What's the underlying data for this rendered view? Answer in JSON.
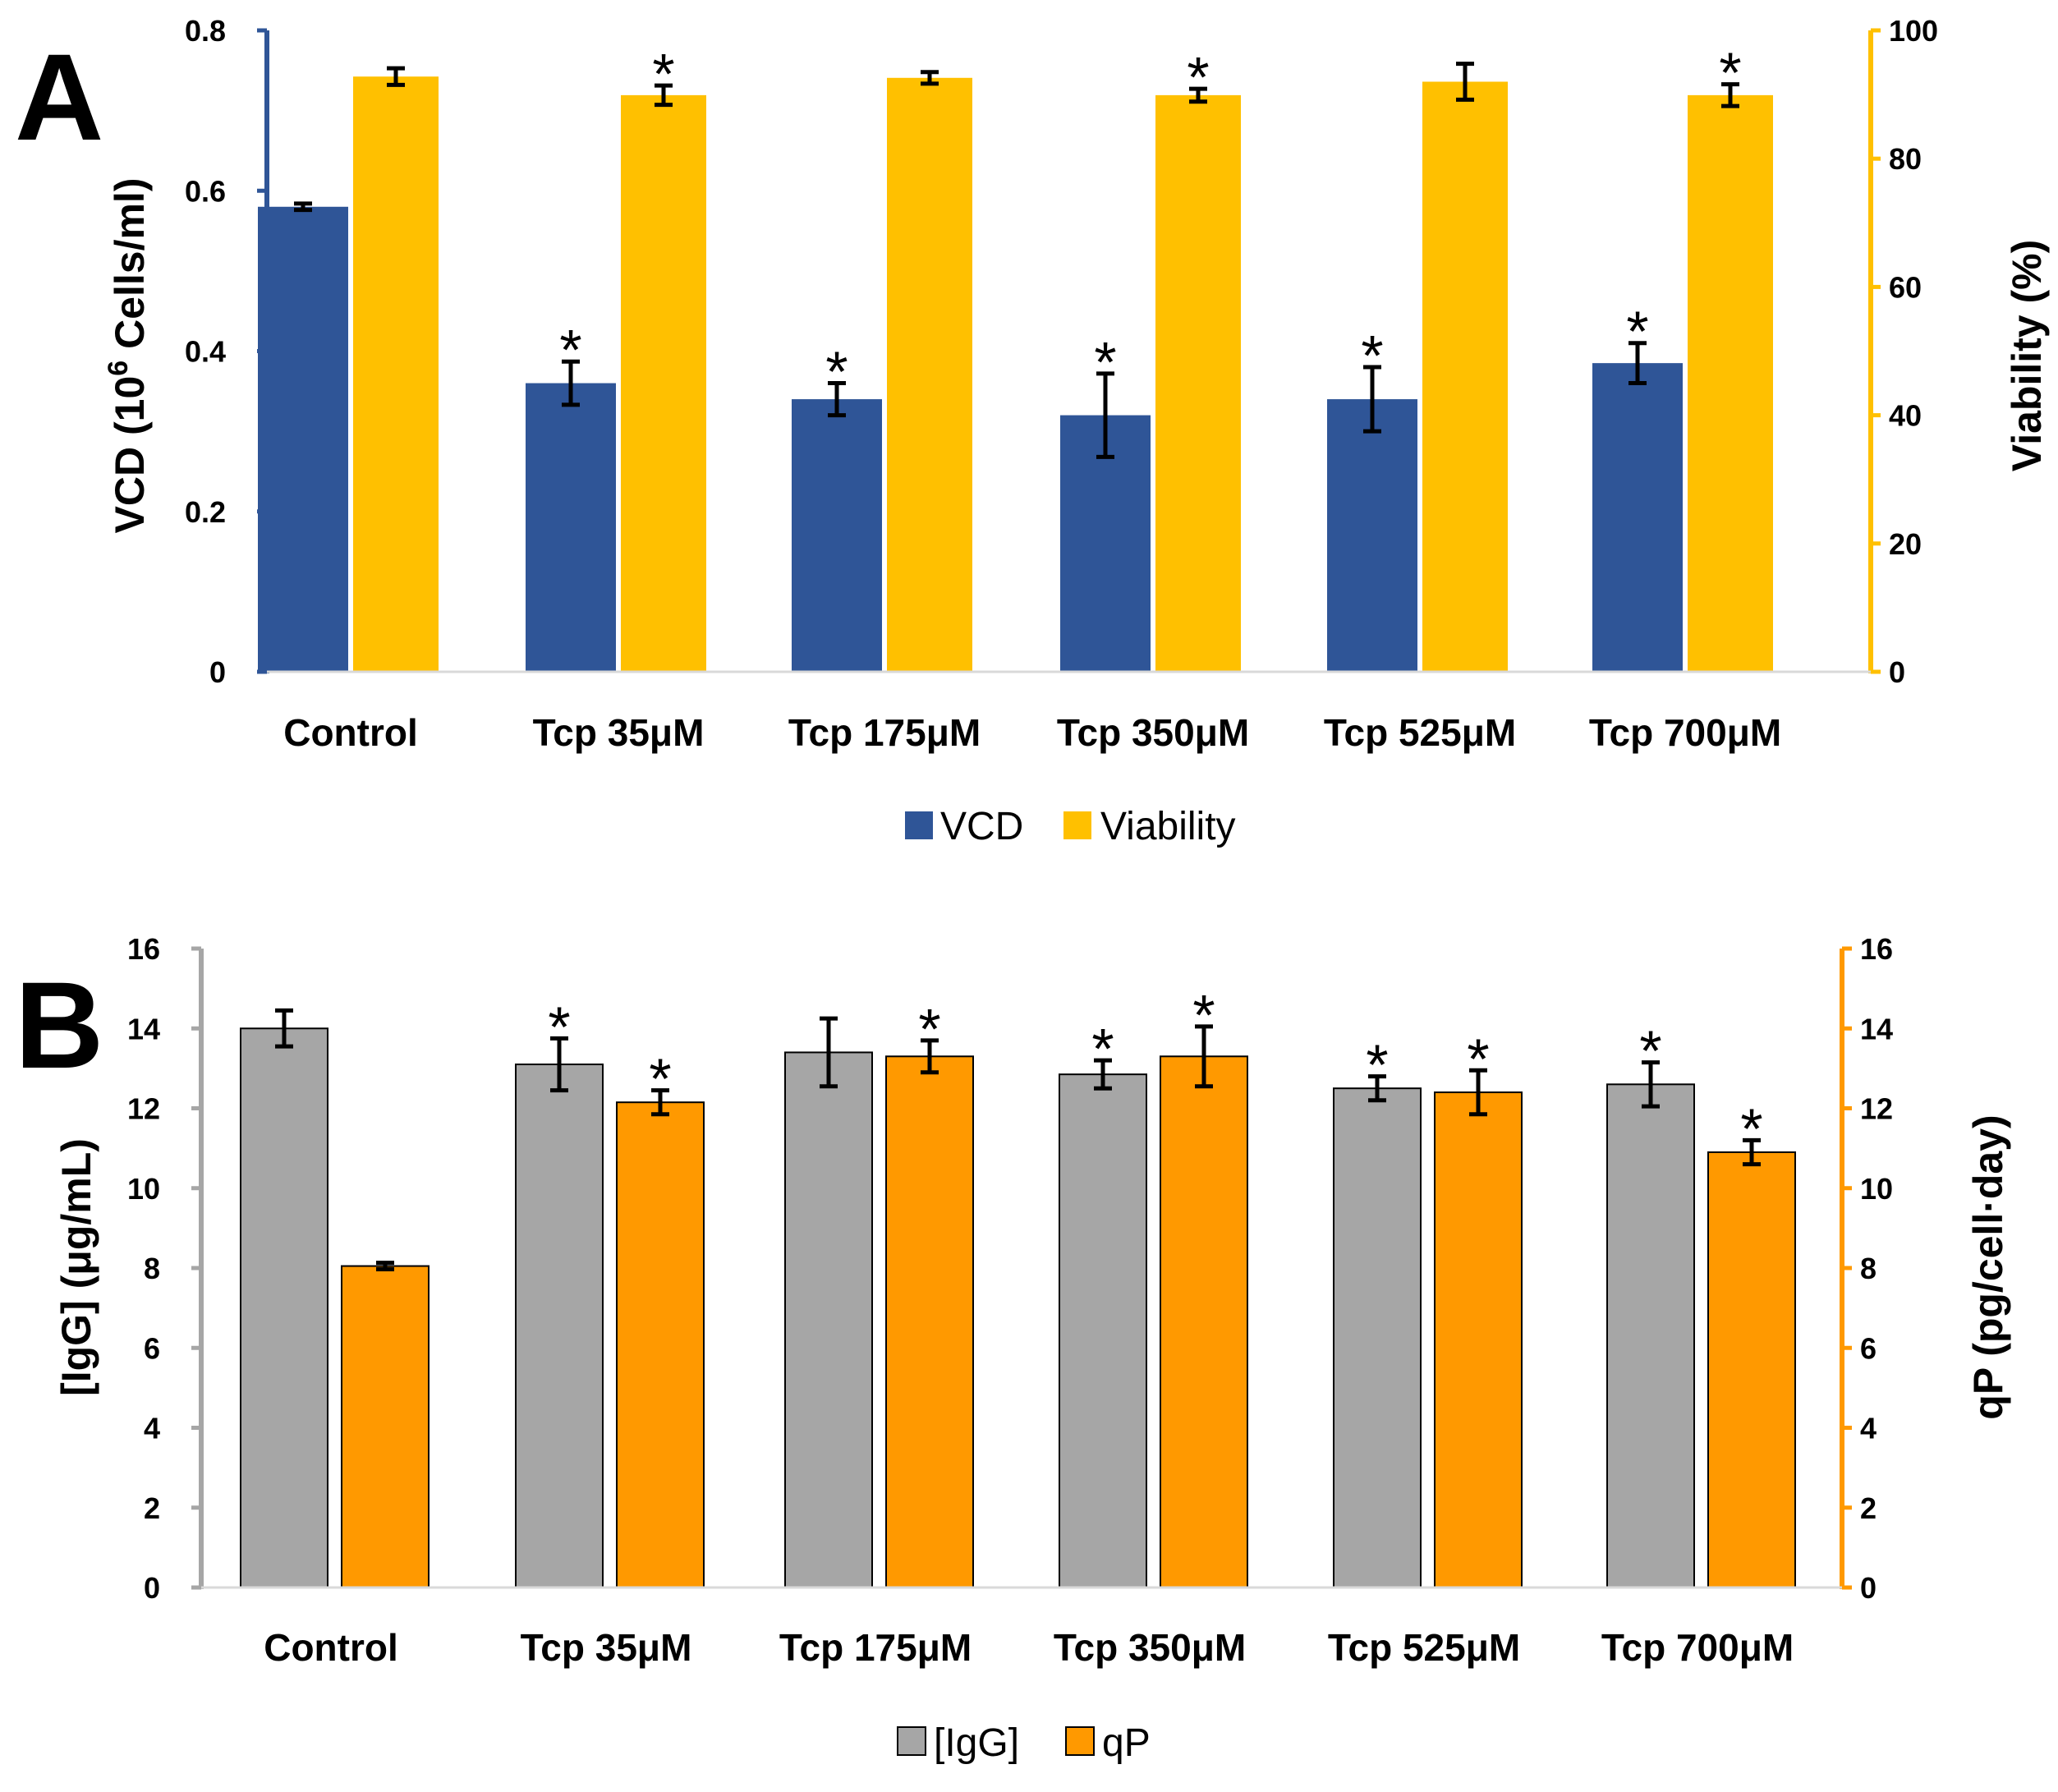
{
  "figure": {
    "panel_labels": [
      "A",
      "B"
    ]
  },
  "colors": {
    "vcd": "#2f5597",
    "viability": "#ffc000",
    "igg": "#a6a6a6",
    "qp": "#ff9900",
    "axis_left_A": "#2f5597",
    "axis_right_A": "#ffc000",
    "axis_left_B": "#a6a6a6",
    "axis_right_B": "#ff9900"
  },
  "chart_data": [
    {
      "panel": "A",
      "type": "bar",
      "categories": [
        "Control",
        "Tcp 35μM",
        "Tcp 175μM",
        "Tcp 350μM",
        "Tcp 525μM",
        "Tcp 700μM"
      ],
      "ylabel_prefix": "VCD (10",
      "ylabel_sup": "6",
      "ylabel_suffix": " Cells/ml)",
      "y2label": "Viability (%)",
      "ylim": [
        0,
        0.8
      ],
      "y2lim": [
        0,
        100
      ],
      "yticks": [
        "0",
        "0.2",
        "0.4",
        "0.6",
        "0.8"
      ],
      "y2ticks": [
        "0",
        "20",
        "40",
        "60",
        "80",
        "100"
      ],
      "series": [
        {
          "name": "VCD",
          "axis": "left",
          "values": [
            0.58,
            0.36,
            0.34,
            0.32,
            0.34,
            0.385
          ],
          "errors": [
            0.004,
            0.027,
            0.02,
            0.052,
            0.04,
            0.025
          ],
          "significant": [
            false,
            true,
            true,
            true,
            true,
            true
          ]
        },
        {
          "name": "Viability",
          "axis": "right",
          "values": [
            92.8,
            89.9,
            92.6,
            89.9,
            92.0,
            89.9
          ],
          "errors": [
            1.3,
            1.5,
            0.9,
            1.0,
            2.8,
            1.7
          ],
          "significant": [
            false,
            true,
            false,
            true,
            false,
            true
          ]
        }
      ],
      "star_label": "*",
      "legend": [
        "VCD",
        "Viability"
      ]
    },
    {
      "panel": "B",
      "type": "bar",
      "categories": [
        "Control",
        "Tcp 35μM",
        "Tcp 175μM",
        "Tcp 350μM",
        "Tcp 525μM",
        "Tcp 700μM"
      ],
      "ylabel": "[IgG] (μg/mL)",
      "y2label": "qP (pg/cell·day)",
      "ylim": [
        0,
        16
      ],
      "y2lim": [
        0,
        16
      ],
      "yticks": [
        "0",
        "2",
        "4",
        "6",
        "8",
        "10",
        "12",
        "14",
        "16"
      ],
      "y2ticks": [
        "0",
        "2",
        "4",
        "6",
        "8",
        "10",
        "12",
        "14",
        "16"
      ],
      "series": [
        {
          "name": "[IgG]",
          "axis": "left",
          "values": [
            14.0,
            13.1,
            13.4,
            12.85,
            12.5,
            12.6
          ],
          "errors": [
            0.45,
            0.65,
            0.85,
            0.35,
            0.3,
            0.55
          ],
          "significant": [
            false,
            true,
            false,
            true,
            true,
            true
          ]
        },
        {
          "name": "qP",
          "axis": "right",
          "values": [
            8.05,
            12.15,
            13.3,
            13.3,
            12.4,
            10.9
          ],
          "errors": [
            0.08,
            0.3,
            0.4,
            0.75,
            0.55,
            0.3
          ],
          "significant": [
            false,
            true,
            true,
            true,
            true,
            true
          ]
        }
      ],
      "star_label": "*",
      "legend": [
        "[IgG]",
        "qP"
      ]
    }
  ]
}
